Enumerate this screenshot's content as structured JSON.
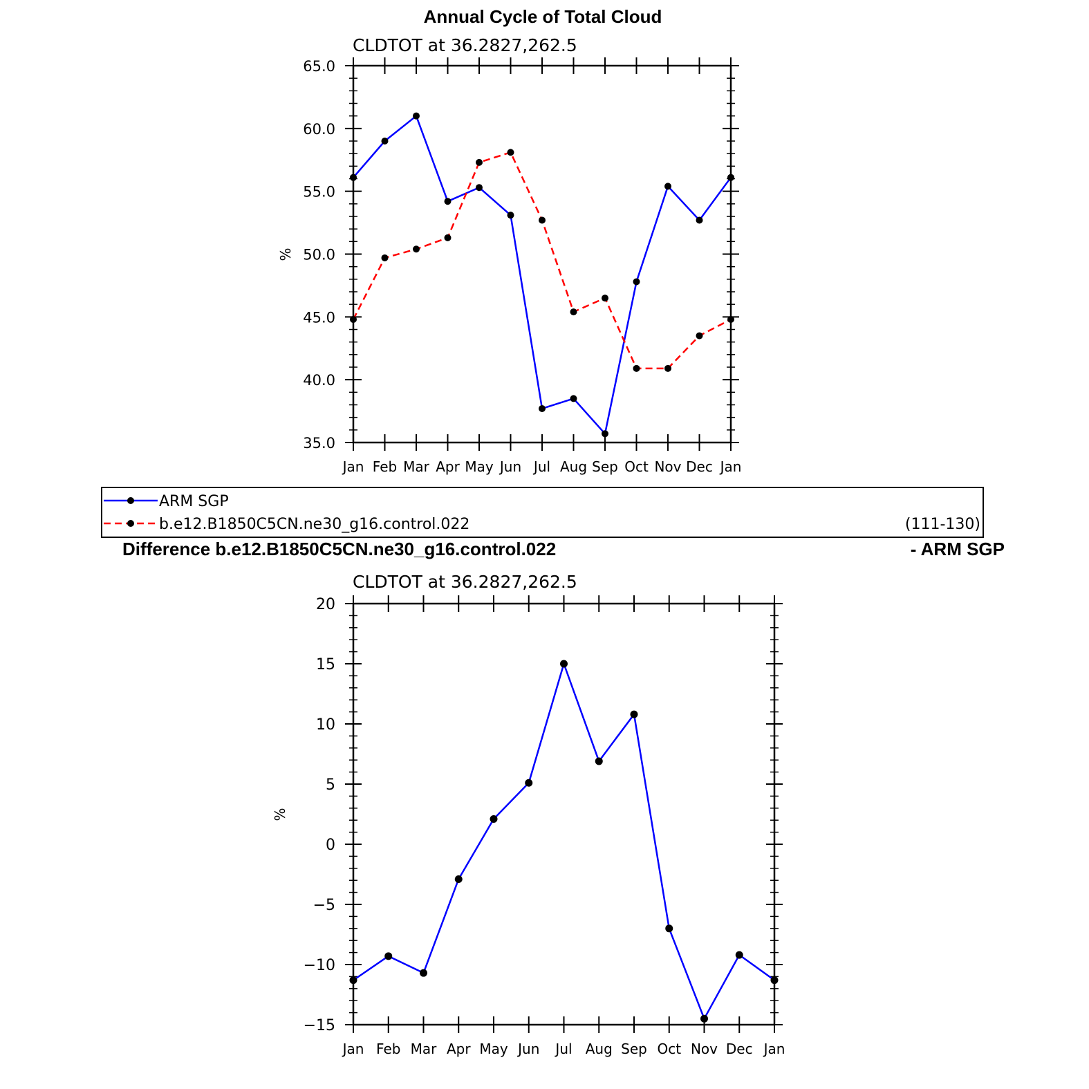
{
  "figure": {
    "title": "Annual Cycle of Total Cloud",
    "diff_title_left": "Difference b.e12.B1850C5CN.ne30_g16.control.022",
    "diff_title_right": "- ARM SGP"
  },
  "legend": {
    "entries": [
      {
        "label": "ARM SGP",
        "color": "#0000ff",
        "dash": "solid"
      },
      {
        "label": "b.e12.B1850C5CN.ne30_g16.control.022",
        "color": "#ff0000",
        "dash": "dashed"
      }
    ],
    "period": "(111-130)"
  },
  "chart_data": [
    {
      "type": "line",
      "subtitle": "CLDTOT at 36.2827,262.5",
      "ylabel": "%",
      "categories": [
        "Jan",
        "Feb",
        "Mar",
        "Apr",
        "May",
        "Jun",
        "Jul",
        "Aug",
        "Sep",
        "Oct",
        "Nov",
        "Dec",
        "Jan"
      ],
      "ylim": [
        35.0,
        65.0
      ],
      "yticks": [
        "35.0",
        "40.0",
        "45.0",
        "50.0",
        "55.0",
        "60.0",
        "65.0"
      ],
      "yticks_values": [
        35,
        40,
        45,
        50,
        55,
        60,
        65
      ],
      "series": [
        {
          "name": "ARM SGP",
          "color": "#0000ff",
          "dash": "solid",
          "values": [
            56.1,
            59.0,
            61.0,
            54.2,
            55.3,
            53.1,
            37.7,
            38.5,
            35.7,
            47.8,
            55.4,
            52.7,
            56.1
          ]
        },
        {
          "name": "b.e12.B1850C5CN.ne30_g16.control.022",
          "color": "#ff0000",
          "dash": "dashed",
          "values": [
            44.8,
            49.7,
            50.4,
            51.3,
            57.3,
            58.1,
            52.7,
            45.4,
            46.5,
            40.9,
            40.9,
            43.5,
            44.8
          ]
        }
      ]
    },
    {
      "type": "line",
      "subtitle": "CLDTOT at 36.2827,262.5",
      "ylabel": "%",
      "categories": [
        "Jan",
        "Feb",
        "Mar",
        "Apr",
        "May",
        "Jun",
        "Jul",
        "Aug",
        "Sep",
        "Oct",
        "Nov",
        "Dec",
        "Jan"
      ],
      "ylim": [
        -15,
        20
      ],
      "yticks": [
        "−15",
        "−10",
        "−5",
        "0",
        "5",
        "10",
        "15",
        "20"
      ],
      "yticks_values": [
        -15,
        -10,
        -5,
        0,
        5,
        10,
        15,
        20
      ],
      "series": [
        {
          "color": "#0000ff",
          "dash": "solid",
          "values": [
            -11.3,
            -9.3,
            -10.7,
            -2.9,
            2.1,
            5.1,
            15.0,
            6.9,
            10.8,
            -7.0,
            -14.5,
            -9.2,
            -11.3
          ]
        }
      ]
    }
  ]
}
